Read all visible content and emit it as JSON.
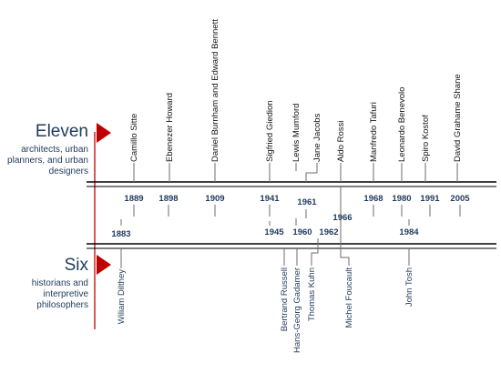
{
  "colors": {
    "accent": "#c00000",
    "text_dark": "#1f3a5c",
    "line": "#000000",
    "connector": "#6e6e6e"
  },
  "groups": {
    "eleven": {
      "title": "Eleven",
      "subtitle_lines": [
        "architects, urban",
        "planners, and urban",
        "designers"
      ],
      "marker_icon": "red-triangle-icon"
    },
    "six": {
      "title": "Six",
      "subtitle_lines": [
        "historians and",
        "interpretive",
        "philosophers"
      ],
      "marker_icon": "red-triangle-icon"
    }
  },
  "upper_timeline": {
    "people": [
      {
        "name": "Camillo Sitte",
        "year": "1889"
      },
      {
        "name": "Ebenezer Howard",
        "year": "1898"
      },
      {
        "name": "Daniel Burnham and Edward Bennett",
        "year": "1909"
      },
      {
        "name": "Sigfried Giedion",
        "year": "1941"
      },
      {
        "name": "Lewis Mumford",
        "year": "1961"
      },
      {
        "name": "Jane Jacobs",
        "year": "1961"
      },
      {
        "name": "Aldo Rossi",
        "year": "1966"
      },
      {
        "name": "Manfredo Tafuri",
        "year": "1968"
      },
      {
        "name": "Leonardo Benevolo",
        "year": "1980"
      },
      {
        "name": "Spiro Kostof",
        "year": "1991"
      },
      {
        "name": "David Grahame Shane",
        "year": "2005"
      }
    ]
  },
  "lower_timeline": {
    "people": [
      {
        "name": "Wiliam Dilthey",
        "year": "1883"
      },
      {
        "name": "Bertrand Russell",
        "year": "1945"
      },
      {
        "name": "Hans-Georg Gadamer",
        "year": "1960"
      },
      {
        "name": "Thomas Kuhn",
        "year": "1962"
      },
      {
        "name": "Michel Foucault",
        "year": "1966"
      },
      {
        "name": "John Tosh",
        "year": "1984"
      }
    ]
  }
}
